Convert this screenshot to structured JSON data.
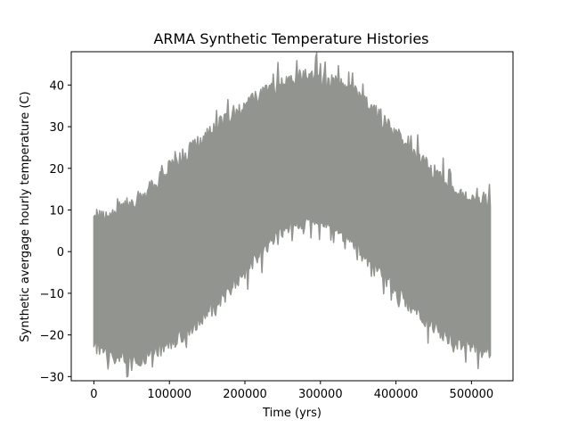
{
  "chart_data": {
    "type": "area",
    "title": "ARMA Synthetic Temperature Histories",
    "xlabel": "Time (yrs)",
    "ylabel": "Synthetic avergage hourly temperature (C)",
    "xlim": [
      -30000,
      555000
    ],
    "ylim": [
      -31,
      48
    ],
    "x_ticks": [
      0,
      100000,
      200000,
      300000,
      400000,
      500000
    ],
    "y_ticks": [
      -30,
      -20,
      -10,
      0,
      10,
      20,
      30,
      40
    ],
    "x_tick_labels": [
      "0",
      "100000",
      "200000",
      "300000",
      "400000",
      "500000"
    ],
    "y_tick_labels": [
      "−30",
      "−20",
      "−10",
      "0",
      "10",
      "20",
      "30",
      "40"
    ],
    "grid": false,
    "series": [
      {
        "color": "#929490",
        "x_range": [
          0,
          525000
        ],
        "envelope_x": [
          0,
          25000,
          50000,
          75000,
          100000,
          125000,
          150000,
          175000,
          200000,
          225000,
          250000,
          275000,
          300000,
          325000,
          350000,
          375000,
          400000,
          425000,
          450000,
          475000,
          500000,
          525000
        ],
        "envelope_upper": [
          8,
          9,
          12,
          15,
          20,
          24,
          28,
          32,
          35,
          38,
          40,
          42,
          41,
          40,
          37,
          33,
          28,
          24,
          19,
          15,
          12,
          11
        ],
        "envelope_lower": [
          -22,
          -25,
          -26,
          -25,
          -22,
          -19,
          -15,
          -10,
          -5,
          1,
          5,
          7,
          7,
          5,
          1,
          -4,
          -9,
          -14,
          -18,
          -21,
          -23,
          -24
        ]
      }
    ]
  }
}
